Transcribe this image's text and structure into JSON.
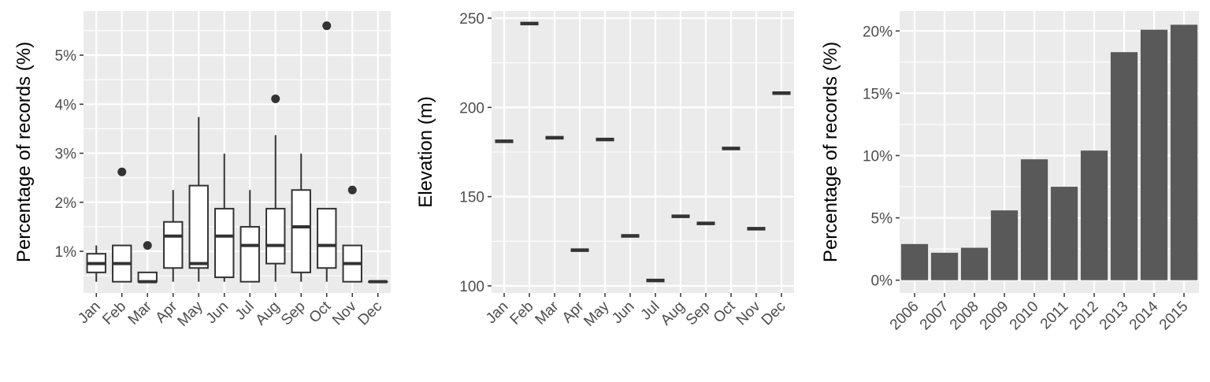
{
  "colors": {
    "panel_bg": "#ebebeb",
    "grid_major": "#ffffff",
    "box_stroke": "#333333",
    "bar_fill": "#595959",
    "tick_text": "#4d4d4d"
  },
  "chart_data": [
    {
      "id": "monthly-box",
      "type": "boxplot",
      "ylabel": "Percentage of records (%)",
      "categories": [
        "Jan",
        "Feb",
        "Mar",
        "Apr",
        "May",
        "Jun",
        "Jul",
        "Aug",
        "Sep",
        "Oct",
        "Nov",
        "Dec"
      ],
      "ylim": [
        0.15,
        5.9
      ],
      "yticks": [
        1,
        2,
        3,
        4,
        5
      ],
      "ytick_labels": [
        "1%",
        "2%",
        "3%",
        "4%",
        "5%"
      ],
      "grid": true,
      "boxes": [
        {
          "low": 0.38,
          "q1": 0.57,
          "median": 0.75,
          "q3": 0.95,
          "high": 1.12,
          "outliers": []
        },
        {
          "low": 0.38,
          "q1": 0.38,
          "median": 0.75,
          "q3": 1.12,
          "high": 1.12,
          "outliers": [
            2.62
          ]
        },
        {
          "low": 0.38,
          "q1": 0.38,
          "median": 0.38,
          "q3": 0.57,
          "high": 0.57,
          "outliers": [
            1.12
          ]
        },
        {
          "low": 0.38,
          "q1": 0.66,
          "median": 1.31,
          "q3": 1.6,
          "high": 2.25,
          "outliers": []
        },
        {
          "low": 0.38,
          "q1": 0.66,
          "median": 0.75,
          "q3": 2.34,
          "high": 3.74,
          "outliers": []
        },
        {
          "low": 0.38,
          "q1": 0.47,
          "median": 1.31,
          "q3": 1.87,
          "high": 2.99,
          "outliers": []
        },
        {
          "low": 0.38,
          "q1": 0.38,
          "median": 1.12,
          "q3": 1.5,
          "high": 2.25,
          "outliers": []
        },
        {
          "low": 0.38,
          "q1": 0.75,
          "median": 1.12,
          "q3": 1.87,
          "high": 3.37,
          "outliers": [
            4.11
          ]
        },
        {
          "low": 0.38,
          "q1": 0.57,
          "median": 1.5,
          "q3": 2.25,
          "high": 2.99,
          "outliers": []
        },
        {
          "low": 0.38,
          "q1": 0.66,
          "median": 1.12,
          "q3": 1.87,
          "high": 1.87,
          "outliers": [
            5.6
          ]
        },
        {
          "low": 0.38,
          "q1": 0.38,
          "median": 0.75,
          "q3": 1.12,
          "high": 1.12,
          "outliers": [
            2.25
          ]
        },
        {
          "low": 0.38,
          "q1": 0.38,
          "median": 0.38,
          "q3": 0.38,
          "high": 0.38,
          "outliers": []
        }
      ]
    },
    {
      "id": "monthly-elevation",
      "type": "boxplot",
      "ylabel": "Elevation (m)",
      "categories": [
        "Jan",
        "Feb",
        "Mar",
        "Apr",
        "May",
        "Jun",
        "Jul",
        "Aug",
        "Sep",
        "Oct",
        "Nov",
        "Dec"
      ],
      "ylim": [
        96,
        254
      ],
      "yticks": [
        100,
        150,
        200,
        250
      ],
      "ytick_labels": [
        "100",
        "150",
        "200",
        "250"
      ],
      "grid": true,
      "values": [
        181,
        247,
        183,
        120,
        182,
        128,
        103,
        139,
        135,
        177,
        132,
        208
      ]
    },
    {
      "id": "yearly-bar",
      "type": "bar",
      "ylabel": "Percentage of records (%)",
      "categories": [
        "2006",
        "2007",
        "2008",
        "2009",
        "2010",
        "2011",
        "2012",
        "2013",
        "2014",
        "2015"
      ],
      "values": [
        2.9,
        2.2,
        2.6,
        5.6,
        9.7,
        7.5,
        10.4,
        18.3,
        20.1,
        20.5
      ],
      "ylim": [
        -1.03,
        21.6
      ],
      "yticks": [
        0,
        5,
        10,
        15,
        20
      ],
      "ytick_labels": [
        "0%",
        "5%",
        "10%",
        "15%",
        "20%"
      ],
      "grid": true
    }
  ]
}
